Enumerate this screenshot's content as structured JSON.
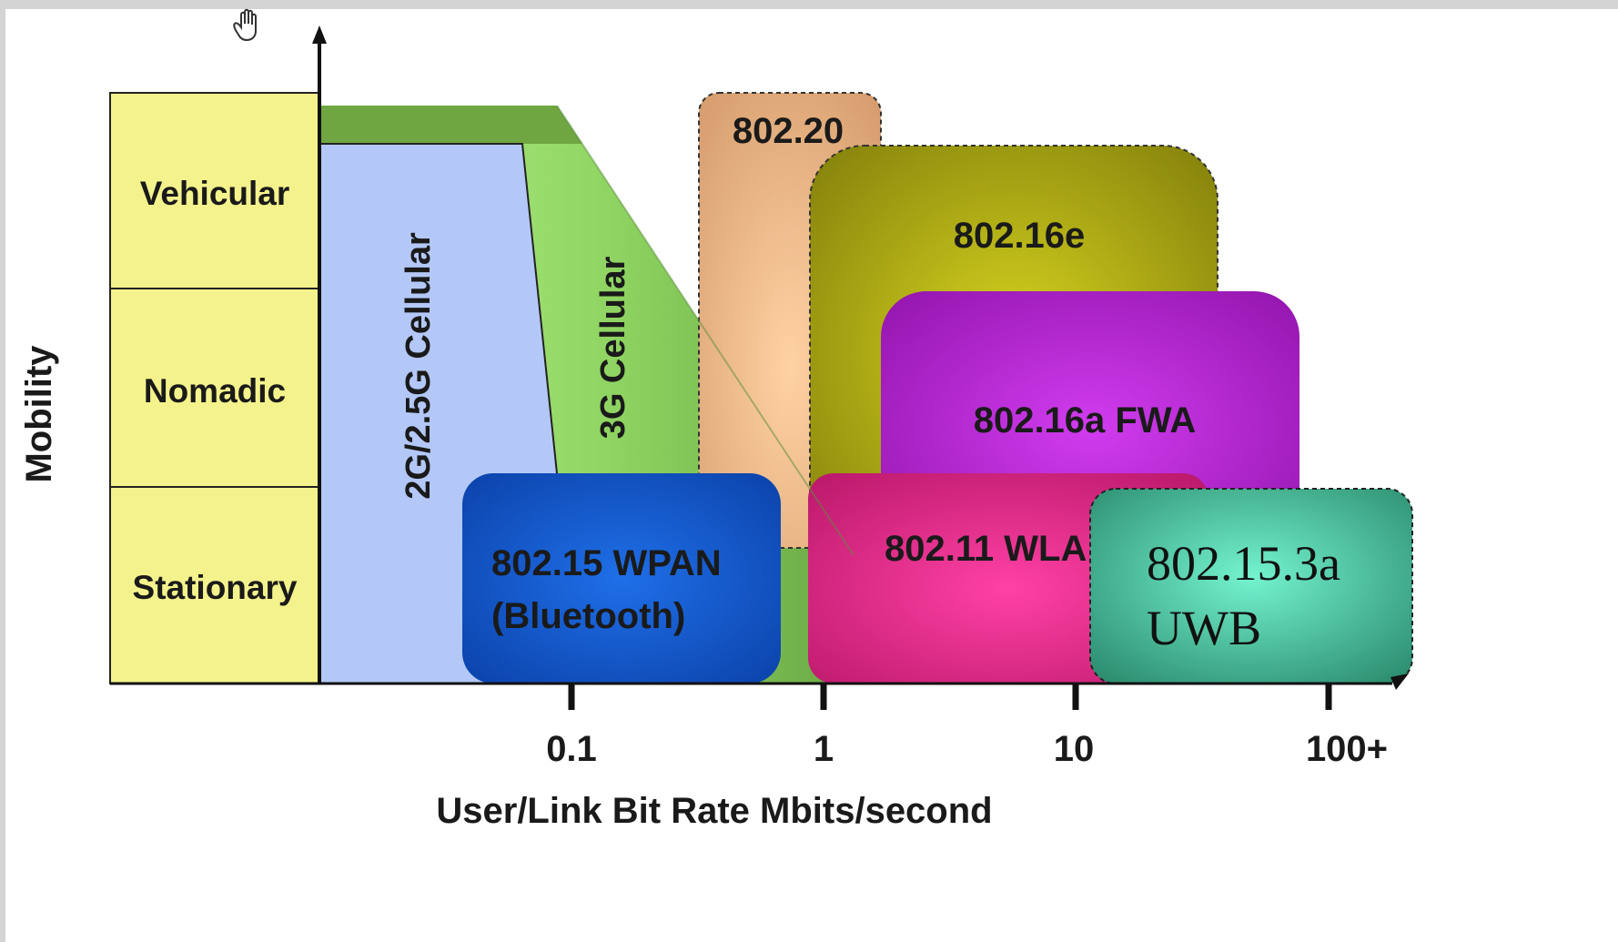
{
  "y_axis": {
    "label": "Mobility",
    "categories": [
      "Vehicular",
      "Nomadic",
      "Stationary"
    ]
  },
  "x_axis": {
    "label": "User/Link Bit Rate Mbits/second",
    "ticks": [
      "0.1",
      "1",
      "10",
      "100+"
    ]
  },
  "regions": {
    "cell_2g": "2G/2.5G Cellular",
    "cell_3g": "3G Cellular",
    "wpan_line1": "802.15 WPAN",
    "wpan_line2": "(Bluetooth)",
    "ieee_80220": "802.20",
    "ieee_80216e": "802.16e",
    "ieee_80216a": "802.16a FWA",
    "wlan": "802.11 WLA",
    "uwb_line1": "802.15.3a",
    "uwb_line2": "UWB"
  },
  "colors": {
    "mobility_boxes": "#f4f28c",
    "cell_2g": "#b3c8f7",
    "cell_3g": "#8fd462",
    "ieee_80220": "#f2b686",
    "ieee_80216e": "#9f9c12",
    "ieee_80216a": "#b21fd1",
    "wlan": "#e62f8e",
    "wpan": "#0f5ad6",
    "uwb": "#46c4a0"
  },
  "icons": {
    "cursor": "hand-cursor-icon"
  }
}
